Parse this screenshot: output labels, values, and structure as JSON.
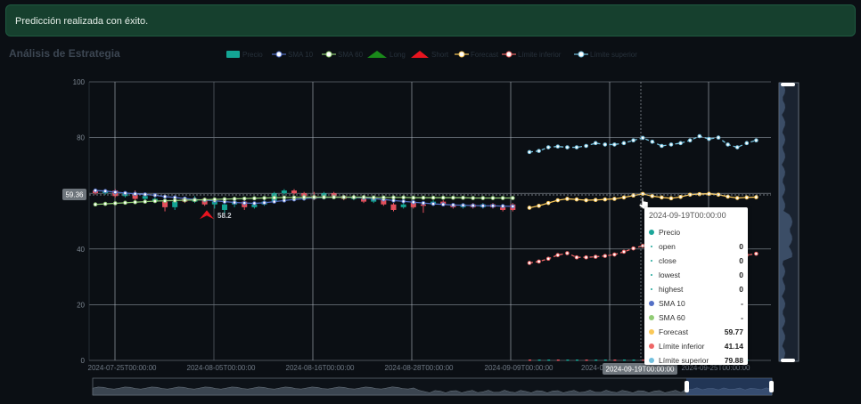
{
  "toast": {
    "message": "Predicción realizada con éxito."
  },
  "panel": {
    "title": "Análisis de Estrategia"
  },
  "tooltip": {
    "title": "2024-09-19T00:00:00",
    "rows": [
      {
        "label": "Precio",
        "value": "",
        "color": "#1ba699",
        "kind": "dot"
      },
      {
        "label": "open",
        "value": "0",
        "color": "#1ba699",
        "kind": "small"
      },
      {
        "label": "close",
        "value": "0",
        "color": "#1ba699",
        "kind": "small"
      },
      {
        "label": "lowest",
        "value": "0",
        "color": "#1ba699",
        "kind": "small"
      },
      {
        "label": "highest",
        "value": "0",
        "color": "#1ba699",
        "kind": "small"
      },
      {
        "label": "SMA 10",
        "value": "-",
        "color": "#5470c6",
        "kind": "dot"
      },
      {
        "label": "SMA 60",
        "value": "-",
        "color": "#91cc75",
        "kind": "dot"
      },
      {
        "label": "Forecast",
        "value": "59.77",
        "color": "#fac858",
        "kind": "dot"
      },
      {
        "label": "Límite inferior",
        "value": "41.14",
        "color": "#ee6666",
        "kind": "dot"
      },
      {
        "label": "Límite superior",
        "value": "79.88",
        "color": "#73c0de",
        "kind": "dot"
      }
    ]
  },
  "chart_data": {
    "type": "candlestick",
    "legend": [
      "Precio",
      "SMA 10",
      "SMA 60",
      "Long",
      "Short",
      "Forecast",
      "Límite inferior",
      "Límite superior"
    ],
    "legend_colors": [
      "#14a594",
      "#5470c6",
      "#91cc75",
      "#1a8a1a",
      "#e8141f",
      "#fac858",
      "#ee6666",
      "#73c0de"
    ],
    "legend_position": "top-center",
    "ylim": [
      0,
      100
    ],
    "yticks": [
      0,
      20,
      40,
      60,
      80,
      100
    ],
    "xticks": [
      "2024-07-25T00:00:00",
      "2024-08-05T00:00:00",
      "2024-08-16T00:00:00",
      "2024-08-28T00:00:00",
      "2024-09-09T00:00:00",
      "2024-09-19T00:00:00",
      "2024-09-25T00:00:00"
    ],
    "hover_x_label": "2024-09-19T00:00:00",
    "hover_y_label": "59.36",
    "short_signal": {
      "label": "58.2",
      "value": 52
    },
    "grid": true,
    "candles": [
      {
        "o": 61,
        "c": 60,
        "h": 61.5,
        "l": 59.5
      },
      {
        "o": 60,
        "c": 61,
        "h": 61.5,
        "l": 59.5
      },
      {
        "o": 61,
        "c": 59,
        "h": 61.5,
        "l": 58.5
      },
      {
        "o": 59,
        "c": 60,
        "h": 60.5,
        "l": 58.5
      },
      {
        "o": 60,
        "c": 58,
        "h": 61,
        "l": 57.5
      },
      {
        "o": 58,
        "c": 59,
        "h": 59.5,
        "l": 57
      },
      {
        "o": 57,
        "c": 58,
        "h": 58.5,
        "l": 56.5
      },
      {
        "o": 57,
        "c": 55,
        "h": 57.5,
        "l": 53.5
      },
      {
        "o": 55,
        "c": 57,
        "h": 57.5,
        "l": 54
      },
      {
        "o": 58,
        "c": 57,
        "h": 58.5,
        "l": 56.5
      },
      {
        "o": 57,
        "c": 58,
        "h": 59,
        "l": 56.5
      },
      {
        "o": 58,
        "c": 56,
        "h": 58.5,
        "l": 55.5
      },
      {
        "o": 56,
        "c": 57,
        "h": 58,
        "l": 54.5
      },
      {
        "o": 54,
        "c": 56,
        "h": 56.5,
        "l": 52.5
      },
      {
        "o": 56,
        "c": 57,
        "h": 57.5,
        "l": 55
      },
      {
        "o": 57,
        "c": 55,
        "h": 57.5,
        "l": 54
      },
      {
        "o": 55,
        "c": 56,
        "h": 56.5,
        "l": 54.5
      },
      {
        "o": 56,
        "c": 57,
        "h": 58,
        "l": 55.5
      },
      {
        "o": 57,
        "c": 60,
        "h": 60.5,
        "l": 56.5
      },
      {
        "o": 60,
        "c": 61,
        "h": 61.5,
        "l": 59.5
      },
      {
        "o": 61,
        "c": 60,
        "h": 61.5,
        "l": 59.5
      },
      {
        "o": 60,
        "c": 59,
        "h": 60.5,
        "l": 58.5
      },
      {
        "o": 59,
        "c": 58,
        "h": 60.5,
        "l": 57.5
      },
      {
        "o": 59,
        "c": 60,
        "h": 60.5,
        "l": 58.5
      },
      {
        "o": 60,
        "c": 59,
        "h": 60.5,
        "l": 58.5
      },
      {
        "o": 59,
        "c": 58,
        "h": 59.5,
        "l": 57.5
      },
      {
        "o": 58,
        "c": 58.5,
        "h": 59,
        "l": 57.5
      },
      {
        "o": 58,
        "c": 57,
        "h": 58.5,
        "l": 56.5
      },
      {
        "o": 57,
        "c": 58,
        "h": 58.5,
        "l": 56.5
      },
      {
        "o": 58,
        "c": 56,
        "h": 58.5,
        "l": 55.5
      },
      {
        "o": 56,
        "c": 54,
        "h": 56.5,
        "l": 53.5
      },
      {
        "o": 55,
        "c": 56,
        "h": 56.5,
        "l": 54.5
      },
      {
        "o": 57,
        "c": 55,
        "h": 57.5,
        "l": 54.5
      },
      {
        "o": 56,
        "c": 55.5,
        "h": 56.5,
        "l": 53
      },
      {
        "o": 56,
        "c": 57,
        "h": 57.5,
        "l": 55.5
      },
      {
        "o": 57,
        "c": 56,
        "h": 57.5,
        "l": 55.5
      },
      {
        "o": 56,
        "c": 55,
        "h": 56.5,
        "l": 54.5
      },
      {
        "o": 55,
        "c": 56,
        "h": 56.5,
        "l": 54.5
      },
      {
        "o": 56,
        "c": 55,
        "h": 56.5,
        "l": 54.5
      },
      {
        "o": 55,
        "c": 56,
        "h": 56.5,
        "l": 54.5
      },
      {
        "o": 56,
        "c": 55,
        "h": 56.5,
        "l": 54.5
      },
      {
        "o": 55,
        "c": 54,
        "h": 56,
        "l": 53.5
      },
      {
        "o": 56,
        "c": 54,
        "h": 56.5,
        "l": 53.5
      }
    ],
    "series": [
      {
        "name": "SMA 10",
        "color": "#5470c6",
        "values": [
          61,
          60.8,
          60.4,
          60.1,
          59.8,
          59.6,
          59.3,
          58.8,
          58.5,
          58.1,
          57.8,
          57.5,
          57.3,
          57,
          56.7,
          56.5,
          56.4,
          56.6,
          57,
          57.4,
          57.8,
          58.1,
          58.4,
          58.5,
          58.6,
          58.6,
          58.5,
          58.3,
          58.1,
          57.8,
          57.4,
          57.1,
          56.8,
          56.5,
          56.2,
          56,
          55.8,
          55.7,
          55.6,
          55.5,
          55.5,
          55.4,
          55.3
        ]
      },
      {
        "name": "SMA 60",
        "color": "#91cc75",
        "values": [
          56,
          56.2,
          56.4,
          56.6,
          56.8,
          57,
          57.2,
          57.3,
          57.4,
          57.5,
          57.6,
          57.7,
          57.8,
          57.9,
          58,
          58.1,
          58.2,
          58.3,
          58.4,
          58.5,
          58.5,
          58.6,
          58.6,
          58.6,
          58.6,
          58.6,
          58.6,
          58.6,
          58.5,
          58.5,
          58.5,
          58.5,
          58.4,
          58.4,
          58.4,
          58.4,
          58.4,
          58.4,
          58.3,
          58.3,
          58.3,
          58.3,
          58.3
        ]
      },
      {
        "name": "Forecast",
        "color": "#fac858",
        "values": [
          54.8,
          55.5,
          56.5,
          57.5,
          58,
          57.8,
          57.5,
          57.6,
          57.8,
          58,
          58.5,
          59.2,
          59.77,
          59,
          58.5,
          58.2,
          58.7,
          59.5,
          59.7,
          59.8,
          59.5,
          58.8,
          58.3,
          58.5,
          58.6
        ]
      },
      {
        "name": "Límite inferior",
        "color": "#ee6666",
        "values": [
          35,
          35.5,
          36.5,
          37.8,
          38.5,
          37,
          37,
          37.2,
          37.5,
          38,
          39,
          40.2,
          41.14,
          40.5,
          39.5,
          39.2,
          39.5,
          39.8,
          40,
          39.5,
          39,
          38,
          37.5,
          37.8,
          38.3
        ]
      },
      {
        "name": "Límite superior",
        "color": "#73c0de",
        "values": [
          74.8,
          75.2,
          76.5,
          76.8,
          76.5,
          76.5,
          77,
          78,
          77.5,
          77.5,
          78,
          79,
          79.88,
          78.5,
          77,
          77.5,
          78,
          79,
          80.5,
          79.5,
          80,
          77.5,
          76.5,
          78,
          79
        ]
      }
    ]
  }
}
